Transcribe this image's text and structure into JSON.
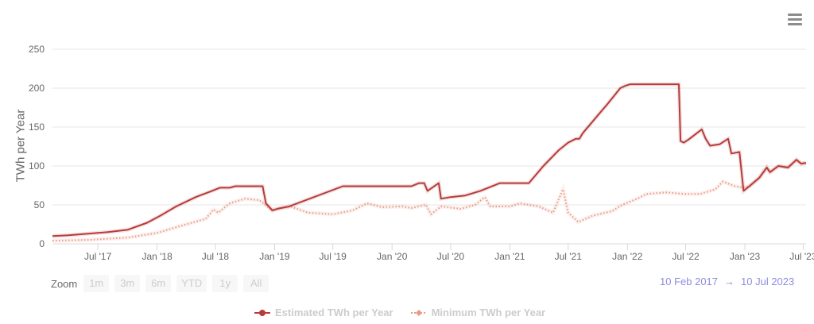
{
  "menu": {
    "icon": "hamburger-menu-icon"
  },
  "y_axis": {
    "title": "TWh per Year",
    "ticks": [
      "250",
      "200",
      "150",
      "100",
      "50",
      "0"
    ]
  },
  "x_axis": {
    "ticks": [
      "Jul '17",
      "Jan '18",
      "Jul '18",
      "Jan '19",
      "Jul '19",
      "Jan '20",
      "Jul '20",
      "Jan '21",
      "Jul '21",
      "Jan '22",
      "Jul '22",
      "Jan '23",
      "Jul '23"
    ]
  },
  "range_selector": {
    "zoom_label": "Zoom",
    "buttons": [
      "1m",
      "3m",
      "6m",
      "YTD",
      "1y",
      "All"
    ],
    "from": "10 Feb 2017",
    "arrow": "→",
    "to": "10 Jul 2023"
  },
  "legend": [
    {
      "label": "Estimated TWh per Year",
      "color": "#b83b3b"
    },
    {
      "label": "Minimum TWh per Year",
      "color": "#e89a86"
    }
  ],
  "chart_data": {
    "type": "line",
    "title": "",
    "xlabel": "",
    "ylabel": "TWh per Year",
    "ylim": [
      0,
      250
    ],
    "xlim": [
      "2017-02-10",
      "2023-07-10"
    ],
    "grid": true,
    "legend_position": "bottom",
    "x_ticks": [
      "Jul '17",
      "Jan '18",
      "Jul '18",
      "Jan '19",
      "Jul '19",
      "Jan '20",
      "Jul '20",
      "Jan '21",
      "Jul '21",
      "Jan '22",
      "Jul '22",
      "Jan '23",
      "Jul '23"
    ],
    "series": [
      {
        "name": "Estimated TWh per Year",
        "color": "#b83b3b",
        "style": "solid",
        "points": [
          [
            "2017-02-10",
            10
          ],
          [
            "2017-04-01",
            11
          ],
          [
            "2017-06-01",
            13
          ],
          [
            "2017-08-01",
            15
          ],
          [
            "2017-10-01",
            18
          ],
          [
            "2017-12-01",
            27
          ],
          [
            "2018-01-15",
            37
          ],
          [
            "2018-03-01",
            48
          ],
          [
            "2018-05-01",
            60
          ],
          [
            "2018-06-15",
            67
          ],
          [
            "2018-07-15",
            72
          ],
          [
            "2018-08-15",
            72
          ],
          [
            "2018-09-01",
            74
          ],
          [
            "2018-11-25",
            74
          ],
          [
            "2018-12-05",
            52
          ],
          [
            "2018-12-25",
            43
          ],
          [
            "2019-01-10",
            45
          ],
          [
            "2019-02-15",
            48
          ],
          [
            "2019-08-01",
            74
          ],
          [
            "2019-12-01",
            74
          ],
          [
            "2020-03-01",
            74
          ],
          [
            "2020-03-25",
            78
          ],
          [
            "2020-04-10",
            78
          ],
          [
            "2020-04-20",
            68
          ],
          [
            "2020-05-25",
            78
          ],
          [
            "2020-06-01",
            58
          ],
          [
            "2020-07-01",
            60
          ],
          [
            "2020-08-15",
            62
          ],
          [
            "2020-10-01",
            68
          ],
          [
            "2020-12-01",
            78
          ],
          [
            "2021-02-15",
            78
          ],
          [
            "2021-03-01",
            78
          ],
          [
            "2021-04-15",
            100
          ],
          [
            "2021-06-01",
            120
          ],
          [
            "2021-07-01",
            130
          ],
          [
            "2021-07-25",
            135
          ],
          [
            "2021-08-05",
            135
          ],
          [
            "2021-08-15",
            142
          ],
          [
            "2021-10-01",
            165
          ],
          [
            "2021-11-01",
            180
          ],
          [
            "2021-12-10",
            200
          ],
          [
            "2021-12-25",
            203
          ],
          [
            "2022-01-10",
            205
          ],
          [
            "2022-06-10",
            205
          ],
          [
            "2022-06-15",
            132
          ],
          [
            "2022-06-25",
            130
          ],
          [
            "2022-07-10",
            134
          ],
          [
            "2022-08-20",
            147
          ],
          [
            "2022-09-01",
            135
          ],
          [
            "2022-09-15",
            126
          ],
          [
            "2022-10-15",
            128
          ],
          [
            "2022-11-10",
            135
          ],
          [
            "2022-11-20",
            116
          ],
          [
            "2022-12-15",
            118
          ],
          [
            "2022-12-28",
            68
          ],
          [
            "2023-01-15",
            74
          ],
          [
            "2023-02-15",
            85
          ],
          [
            "2023-03-10",
            98
          ],
          [
            "2023-03-20",
            92
          ],
          [
            "2023-04-15",
            100
          ],
          [
            "2023-05-15",
            98
          ],
          [
            "2023-06-10",
            108
          ],
          [
            "2023-06-25",
            103
          ],
          [
            "2023-07-10",
            104
          ]
        ]
      },
      {
        "name": "Minimum TWh per Year",
        "color": "#e89a86",
        "style": "dotted",
        "points": [
          [
            "2017-02-10",
            4
          ],
          [
            "2017-06-01",
            5
          ],
          [
            "2017-10-01",
            8
          ],
          [
            "2018-01-01",
            14
          ],
          [
            "2018-04-01",
            25
          ],
          [
            "2018-06-01",
            32
          ],
          [
            "2018-06-25",
            44
          ],
          [
            "2018-07-10",
            40
          ],
          [
            "2018-08-15",
            52
          ],
          [
            "2018-10-01",
            58
          ],
          [
            "2018-11-15",
            56
          ],
          [
            "2018-12-25",
            43
          ],
          [
            "2019-01-20",
            46
          ],
          [
            "2019-02-20",
            48
          ],
          [
            "2019-04-15",
            40
          ],
          [
            "2019-07-01",
            38
          ],
          [
            "2019-09-01",
            43
          ],
          [
            "2019-10-15",
            52
          ],
          [
            "2019-12-01",
            47
          ],
          [
            "2020-02-01",
            48
          ],
          [
            "2020-03-01",
            46
          ],
          [
            "2020-04-15",
            50
          ],
          [
            "2020-05-01",
            38
          ],
          [
            "2020-06-01",
            48
          ],
          [
            "2020-08-01",
            45
          ],
          [
            "2020-09-15",
            50
          ],
          [
            "2020-10-15",
            60
          ],
          [
            "2020-11-01",
            48
          ],
          [
            "2021-01-01",
            48
          ],
          [
            "2021-02-01",
            52
          ],
          [
            "2021-04-01",
            48
          ],
          [
            "2021-05-15",
            40
          ],
          [
            "2021-06-15",
            70
          ],
          [
            "2021-07-01",
            40
          ],
          [
            "2021-08-01",
            28
          ],
          [
            "2021-09-15",
            36
          ],
          [
            "2021-11-15",
            42
          ],
          [
            "2021-12-15",
            50
          ],
          [
            "2022-02-01",
            58
          ],
          [
            "2022-03-01",
            64
          ],
          [
            "2022-05-01",
            66
          ],
          [
            "2022-07-01",
            64
          ],
          [
            "2022-08-15",
            64
          ],
          [
            "2022-10-01",
            70
          ],
          [
            "2022-10-25",
            80
          ],
          [
            "2022-12-01",
            74
          ],
          [
            "2022-12-28",
            72
          ],
          [
            "2023-01-15",
            74
          ],
          [
            "2023-02-15",
            85
          ],
          [
            "2023-03-10",
            98
          ],
          [
            "2023-03-20",
            92
          ],
          [
            "2023-04-15",
            100
          ],
          [
            "2023-05-15",
            98
          ],
          [
            "2023-06-10",
            108
          ],
          [
            "2023-06-25",
            103
          ],
          [
            "2023-07-10",
            104
          ]
        ]
      }
    ]
  }
}
